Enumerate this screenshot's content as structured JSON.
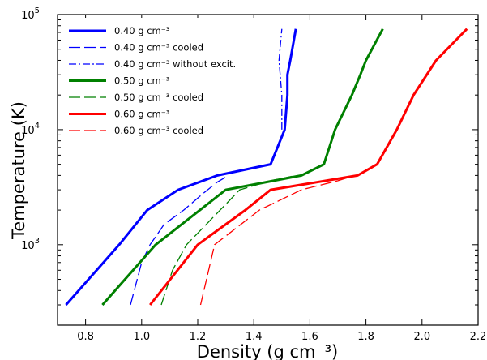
{
  "chart_data": {
    "type": "line",
    "xlabel": "Density (g cm⁻³)",
    "ylabel": "Temperature (K)",
    "xlim": [
      0.7,
      2.2
    ],
    "ylim": [
      200,
      100000
    ],
    "yscale": "log",
    "x_ticks": [
      {
        "value": 0.8,
        "label": "0.8"
      },
      {
        "value": 1.0,
        "label": "1.0"
      },
      {
        "value": 1.2,
        "label": "1.2"
      },
      {
        "value": 1.4,
        "label": "1.4"
      },
      {
        "value": 1.6,
        "label": "1.6"
      },
      {
        "value": 1.8,
        "label": "1.8"
      },
      {
        "value": 2.0,
        "label": "2.0"
      },
      {
        "value": 2.2,
        "label": "2.2"
      }
    ],
    "y_ticks": [
      {
        "value": 1000,
        "base": "10",
        "exp": "3"
      },
      {
        "value": 10000,
        "base": "10",
        "exp": "4"
      },
      {
        "value": 100000,
        "base": "10",
        "exp": "5"
      }
    ],
    "grid": false,
    "legend_position": "top-left",
    "series": [
      {
        "name": "0.40 g cm⁻³",
        "color": "#0000ff",
        "style": "solid",
        "width": 3,
        "points": [
          [
            0.73,
            300
          ],
          [
            0.92,
            1000
          ],
          [
            1.02,
            2000
          ],
          [
            1.13,
            3000
          ],
          [
            1.27,
            4000
          ],
          [
            1.46,
            5000
          ],
          [
            1.51,
            10000
          ],
          [
            1.52,
            20000
          ],
          [
            1.52,
            30000
          ],
          [
            1.53,
            40000
          ],
          [
            1.55,
            75000
          ]
        ]
      },
      {
        "name": "0.40 g cm⁻³ cooled",
        "color": "#0000ff",
        "style": "dashed",
        "width": 1.3,
        "points": [
          [
            0.96,
            300
          ],
          [
            1.0,
            700
          ],
          [
            1.03,
            1000
          ],
          [
            1.08,
            1500
          ],
          [
            1.15,
            2000
          ],
          [
            1.22,
            2800
          ],
          [
            1.27,
            3500
          ],
          [
            1.31,
            4000
          ]
        ]
      },
      {
        "name": "0.40 g cm⁻³ without excit.",
        "color": "#0000ff",
        "style": "dashdot",
        "width": 1.3,
        "points": [
          [
            1.5,
            10000
          ],
          [
            1.5,
            20000
          ],
          [
            1.49,
            40000
          ],
          [
            1.5,
            75000
          ]
        ]
      },
      {
        "name": "0.50 g cm⁻³",
        "color": "#008000",
        "style": "solid",
        "width": 3,
        "points": [
          [
            0.86,
            300
          ],
          [
            1.05,
            1000
          ],
          [
            1.3,
            3000
          ],
          [
            1.57,
            4000
          ],
          [
            1.65,
            5000
          ],
          [
            1.69,
            10000
          ],
          [
            1.75,
            20000
          ],
          [
            1.78,
            30000
          ],
          [
            1.8,
            40000
          ],
          [
            1.86,
            75000
          ]
        ]
      },
      {
        "name": "0.50 g cm⁻³ cooled",
        "color": "#008000",
        "style": "dashed",
        "width": 1.3,
        "points": [
          [
            1.07,
            300
          ],
          [
            1.11,
            600
          ],
          [
            1.16,
            1000
          ],
          [
            1.28,
            2000
          ],
          [
            1.35,
            3000
          ],
          [
            1.46,
            3600
          ],
          [
            1.55,
            4000
          ]
        ]
      },
      {
        "name": "0.60 g cm⁻³",
        "color": "#ff0000",
        "style": "solid",
        "width": 3,
        "points": [
          [
            1.03,
            300
          ],
          [
            1.2,
            1000
          ],
          [
            1.37,
            2000
          ],
          [
            1.46,
            3000
          ],
          [
            1.77,
            4000
          ],
          [
            1.84,
            5000
          ],
          [
            1.91,
            10000
          ],
          [
            1.97,
            20000
          ],
          [
            2.05,
            40000
          ],
          [
            2.16,
            75000
          ]
        ]
      },
      {
        "name": "0.60 g cm⁻³ cooled",
        "color": "#ff0000",
        "style": "dashed",
        "width": 1.3,
        "points": [
          [
            1.21,
            300
          ],
          [
            1.26,
            1000
          ],
          [
            1.42,
            2000
          ],
          [
            1.57,
            3000
          ],
          [
            1.7,
            3600
          ],
          [
            1.76,
            4000
          ]
        ]
      }
    ]
  }
}
